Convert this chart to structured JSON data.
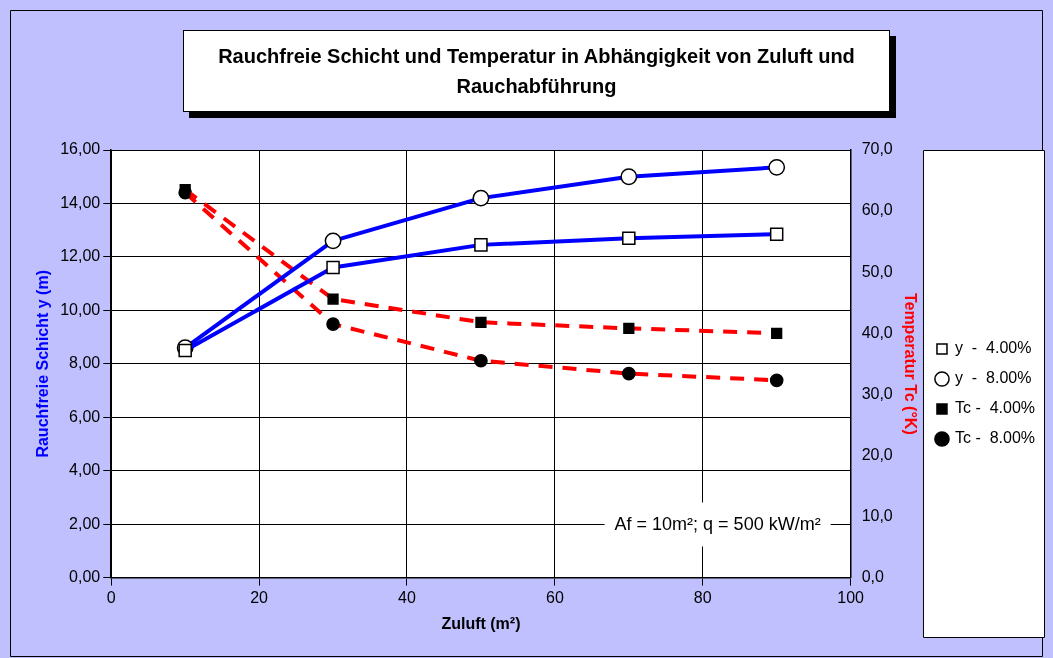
{
  "chart_data": {
    "type": "line",
    "title": "Rauchfreie Schicht  und Temperatur  in Abhängigkeit von Zuluft  und Rauchabführung",
    "xlabel": "Zuluft (m²)",
    "ylabel": "Rauchfreie Schicht y (m)",
    "y2label": "Temperatur Tc (°K)",
    "x": [
      10,
      30,
      50,
      70,
      90
    ],
    "series": [
      {
        "name": "y  -  4.00%",
        "color": "#0000ff",
        "marker": "square",
        "line_style": "solid",
        "colors": [
          "#ffffff",
          "#ffffff",
          "#ffffff",
          "#ffffff",
          "#ffffff"
        ],
        "values": [
          8.5,
          11.6,
          12.45,
          12.7,
          12.85
        ]
      },
      {
        "name": "y  -  8.00%",
        "color": "#0000ff",
        "marker": "circle",
        "line_style": "solid",
        "colors": [
          "#ffffff",
          "#ffffff",
          "#ffffff",
          "#ffffff",
          "#ffffff"
        ],
        "values": [
          8.6,
          12.6,
          14.2,
          15.0,
          15.35
        ]
      },
      {
        "name": "Tc -  4.00%",
        "color": "#ff0000",
        "marker": "square",
        "line_style": "dashed",
        "axis": "y2",
        "colors": [
          "#000000",
          "#000000",
          "#000000",
          "#000000",
          "#000000"
        ],
        "values": [
          63.5,
          45.6,
          41.8,
          40.8,
          40.0
        ]
      },
      {
        "name": "Tc -  8.00%",
        "color": "#ff0000",
        "marker": "circle",
        "line_style": "dashed",
        "axis": "y2",
        "colors": [
          "#000000",
          "#000000",
          "#000000",
          "#000000",
          "#000000"
        ],
        "values": [
          63.0,
          41.5,
          35.5,
          33.4,
          32.3
        ]
      }
    ],
    "xlim": [
      0,
      100
    ],
    "xticks": [
      0,
      20,
      40,
      60,
      80,
      100
    ],
    "ylim": [
      0,
      16
    ],
    "yticks": [
      {
        "value": 0,
        "label": "0,00"
      },
      {
        "value": 2,
        "label": "2,00"
      },
      {
        "value": 4,
        "label": "4,00"
      },
      {
        "value": 6,
        "label": "6,00"
      },
      {
        "value": 8,
        "label": "8,00"
      },
      {
        "value": 10,
        "label": "10,00"
      },
      {
        "value": 12,
        "label": "12,00"
      },
      {
        "value": 14,
        "label": "14,00"
      },
      {
        "value": 16,
        "label": "16,00"
      }
    ],
    "y2lim": [
      0,
      70
    ],
    "y2ticks": [
      {
        "value": 0,
        "label": "0,0"
      },
      {
        "value": 10,
        "label": "10,0"
      },
      {
        "value": 20,
        "label": "20,0"
      },
      {
        "value": 30,
        "label": "30,0"
      },
      {
        "value": 40,
        "label": "40,0"
      },
      {
        "value": 50,
        "label": "50,0"
      },
      {
        "value": 60,
        "label": "60,0"
      },
      {
        "value": 70,
        "label": "70,0"
      }
    ],
    "annotations": [
      "Af = 10m²; q = 500 kW/m²"
    ],
    "grid": true,
    "legend": "right"
  }
}
